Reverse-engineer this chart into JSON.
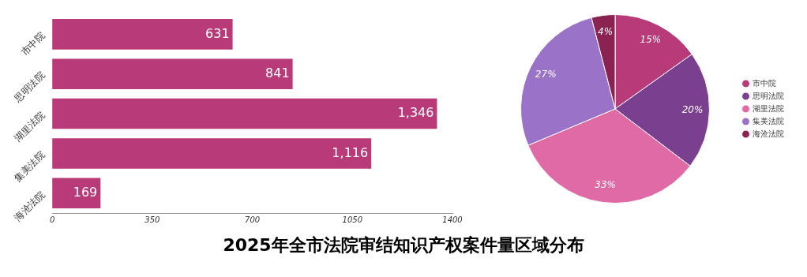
{
  "chart_data": [
    {
      "type": "bar",
      "title": "2025年全市法院审结知识产权案件量区域分布",
      "orientation": "horizontal",
      "categories": [
        "市中院",
        "思明法院",
        "湖里法院",
        "集美法院",
        "海沧法院"
      ],
      "values": [
        631,
        841,
        1346,
        1116,
        169
      ],
      "value_labels": [
        "631",
        "841",
        "1,346",
        "1,116",
        "169"
      ],
      "color": "#b83a78",
      "xlim": [
        0,
        1400
      ],
      "xticks": [
        0,
        350,
        700,
        1050,
        1400
      ],
      "grid": false,
      "legend": false
    },
    {
      "type": "pie",
      "categories": [
        "市中院",
        "思明法院",
        "湖里法院",
        "集美法院",
        "海沧法院"
      ],
      "values": [
        15,
        20,
        33,
        27,
        4
      ],
      "value_labels": [
        "15%",
        "20%",
        "33%",
        "27%",
        "4%"
      ],
      "colors": [
        "#b83a78",
        "#7b3f8f",
        "#e06aa6",
        "#9a72c8",
        "#8a2352"
      ],
      "legend": "right"
    }
  ]
}
